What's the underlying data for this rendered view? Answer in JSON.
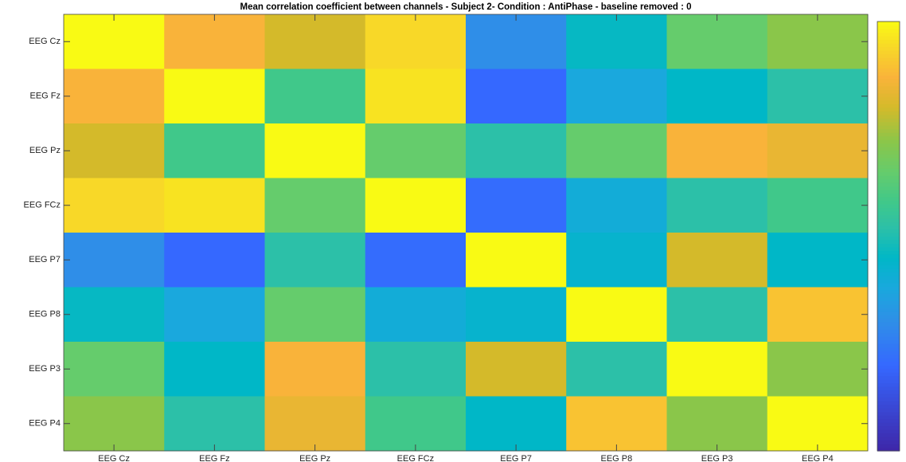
{
  "chart_data": {
    "type": "heatmap",
    "title": "Mean correlation coefficient between channels - Subject 2- Condition : AntiPhase - baseline removed : 0",
    "x": [
      "EEG Cz",
      "EEG Fz",
      "EEG Pz",
      "EEG FCz",
      "EEG P7",
      "EEG P8",
      "EEG P3",
      "EEG P4"
    ],
    "y": [
      "EEG Cz",
      "EEG Fz",
      "EEG Pz",
      "EEG FCz",
      "EEG P7",
      "EEG P8",
      "EEG P3",
      "EEG P4"
    ],
    "values": [
      [
        1,
        0.87,
        0.8,
        0.94,
        0.3,
        0.46,
        0.65,
        0.72
      ],
      [
        0.87,
        1,
        0.58,
        0.96,
        0.2,
        0.38,
        0.45,
        0.52
      ],
      [
        0.8,
        0.58,
        1,
        0.65,
        0.52,
        0.65,
        0.87,
        0.84
      ],
      [
        0.94,
        0.96,
        0.65,
        1,
        0.21,
        0.4,
        0.52,
        0.58
      ],
      [
        0.3,
        0.2,
        0.52,
        0.21,
        1,
        0.43,
        0.8,
        0.45
      ],
      [
        0.46,
        0.38,
        0.65,
        0.4,
        0.43,
        1,
        0.52,
        0.9
      ],
      [
        0.65,
        0.45,
        0.87,
        0.52,
        0.8,
        0.52,
        1,
        0.72
      ],
      [
        0.72,
        0.52,
        0.84,
        0.58,
        0.45,
        0.9,
        0.72,
        1
      ]
    ],
    "colormap": "parula",
    "clim": [
      0,
      1
    ]
  }
}
